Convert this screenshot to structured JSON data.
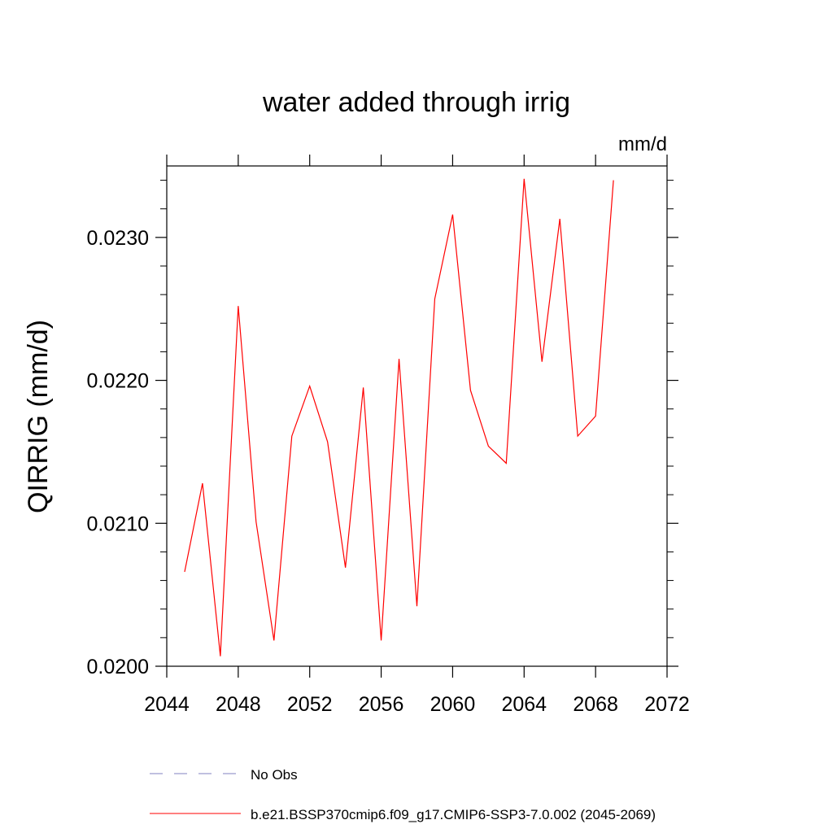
{
  "chart_data": {
    "type": "line",
    "title": "water added through irrig",
    "units": "mm/d",
    "ylabel": "QIRRIG  (mm/d)",
    "xlabel": "",
    "xlim": [
      2044,
      2072
    ],
    "ylim": [
      0.02,
      0.0235
    ],
    "xticks": [
      2044,
      2048,
      2052,
      2056,
      2060,
      2064,
      2068,
      2072
    ],
    "xtick_labels": [
      "2044",
      "2048",
      "2052",
      "2056",
      "2060",
      "2064",
      "2068",
      "2072"
    ],
    "yticks": [
      0.02,
      0.021,
      0.022,
      0.023
    ],
    "ytick_labels": [
      "0.0200",
      "0.0210",
      "0.0220",
      "0.0230"
    ],
    "series": [
      {
        "name": "b.e21.BSSP370cmip6.f09_g17.CMIP6-SSP3-7.0.002 (2045-2069)",
        "color": "#ff0000",
        "style": "solid",
        "x": [
          2045,
          2046,
          2047,
          2048,
          2049,
          2050,
          2051,
          2052,
          2053,
          2054,
          2055,
          2056,
          2057,
          2058,
          2059,
          2060,
          2061,
          2062,
          2063,
          2064,
          2065,
          2066,
          2067,
          2068,
          2069
        ],
        "y": [
          0.02066,
          0.02128,
          0.02007,
          0.02252,
          0.02101,
          0.02018,
          0.02161,
          0.02196,
          0.02157,
          0.02069,
          0.02195,
          0.02018,
          0.02215,
          0.02042,
          0.02257,
          0.02316,
          0.02193,
          0.02154,
          0.02142,
          0.02341,
          0.02213,
          0.02313,
          0.02161,
          0.02175,
          0.0234
        ]
      }
    ],
    "legend": [
      {
        "label": "No Obs",
        "color": "#8080c0",
        "style": "dashed"
      },
      {
        "label": "b.e21.BSSP370cmip6.f09_g17.CMIP6-SSP3-7.0.002 (2045-2069)",
        "color": "#ff0000",
        "style": "solid"
      }
    ]
  }
}
